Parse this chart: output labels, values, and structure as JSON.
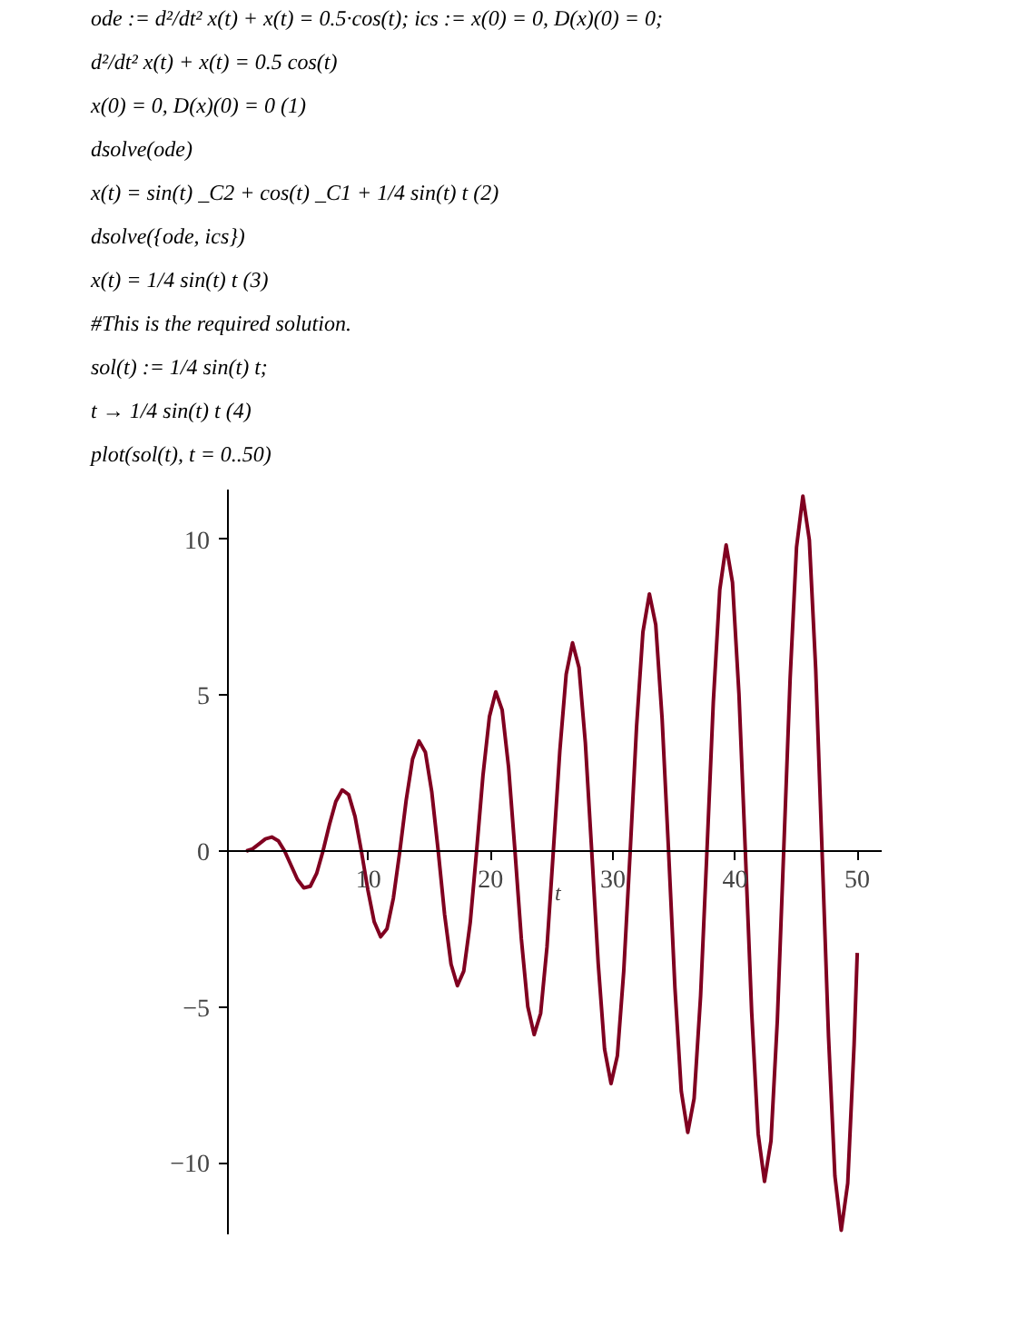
{
  "chart_data": {
    "type": "line",
    "xlabel": "t",
    "annotations": [
      "ode := d²/dt² x(t) + x(t) = 0.5·cos(t); ics := x(0) = 0, D(x)(0) = 0;",
      "d²/dt² x(t) + x(t) = 0.5 cos(t)",
      "x(0) = 0, D(x)(0) = 0    (1)",
      "dsolve(ode)",
      "x(t) = sin(t) _C2 + cos(t) _C1 + 1/4 sin(t) t    (2)",
      "dsolve({ode, ics})",
      "x(t) = 1/4 sin(t) t    (3)",
      "#This is the required solution.",
      "sol(t) := 1/4 sin(t) t;",
      "t → 1/4 sin(t) t    (4)",
      "plot(sol(t), t = 0..50)"
    ],
    "x": [
      0,
      0.52,
      1.05,
      1.57,
      2.09,
      2.62,
      3.14,
      3.67,
      4.19,
      4.71,
      5.24,
      5.76,
      6.28,
      6.81,
      7.33,
      7.85,
      8.38,
      8.9,
      9.42,
      9.95,
      10.47,
      11.0,
      11.52,
      12.04,
      12.57,
      13.09,
      13.61,
      14.14,
      14.66,
      15.18,
      15.71,
      16.23,
      16.76,
      17.28,
      17.8,
      18.33,
      18.85,
      19.37,
      19.9,
      20.42,
      20.94,
      21.47,
      21.99,
      22.51,
      23.04,
      23.56,
      24.09,
      24.61,
      25.13,
      25.66,
      26.18,
      26.7,
      27.23,
      27.75,
      28.27,
      28.8,
      29.32,
      29.85,
      30.37,
      30.89,
      31.42,
      31.94,
      32.46,
      32.99,
      33.51,
      34.03,
      34.56,
      35.08,
      35.6,
      36.13,
      36.65,
      37.18,
      37.7,
      38.22,
      38.75,
      39.27,
      39.79,
      40.32,
      40.84,
      41.36,
      41.89,
      42.41,
      42.94,
      43.46,
      43.98,
      44.51,
      45.03,
      45.55,
      46.08,
      46.6,
      47.12,
      47.65,
      48.17,
      48.69,
      49.22,
      49.74,
      50
    ],
    "series": [
      {
        "color": "#800020",
        "values": [
          0,
          0.07,
          0.23,
          0.39,
          0.45,
          0.33,
          0,
          -0.46,
          -0.91,
          -1.18,
          -1.13,
          -0.72,
          0,
          0.85,
          1.59,
          1.96,
          1.81,
          1.11,
          0,
          -1.24,
          -2.27,
          -2.75,
          -2.49,
          -1.51,
          0,
          1.64,
          2.95,
          3.53,
          3.17,
          1.9,
          0,
          -2.03,
          -3.63,
          -4.32,
          -3.85,
          -2.29,
          0,
          2.42,
          4.31,
          5.11,
          4.53,
          2.68,
          0,
          -2.81,
          -4.99,
          -5.89,
          -5.21,
          -3.08,
          0,
          3.21,
          5.67,
          6.68,
          5.89,
          3.47,
          0,
          -3.6,
          -6.35,
          -7.46,
          -6.57,
          -3.86,
          0,
          3.99,
          7.03,
          8.25,
          7.26,
          4.25,
          0,
          -4.39,
          -7.71,
          -9.03,
          -7.94,
          -4.65,
          0,
          4.78,
          8.39,
          9.82,
          8.62,
          5.04,
          0,
          -5.17,
          -9.07,
          -10.6,
          -9.3,
          -5.43,
          0,
          5.56,
          9.75,
          11.39,
          9.98,
          5.83,
          0,
          -5.96,
          -10.43,
          -12.17,
          -10.66,
          -6.22,
          -3.27
        ]
      }
    ],
    "xlim": [
      -1.5,
      52
    ],
    "ylim": [
      -12.3,
      11.6
    ],
    "xticks": [
      10,
      20,
      30,
      40,
      50
    ],
    "yticks": [
      -10,
      -5,
      0,
      5,
      10
    ],
    "grid": false,
    "line_style": "solid"
  }
}
